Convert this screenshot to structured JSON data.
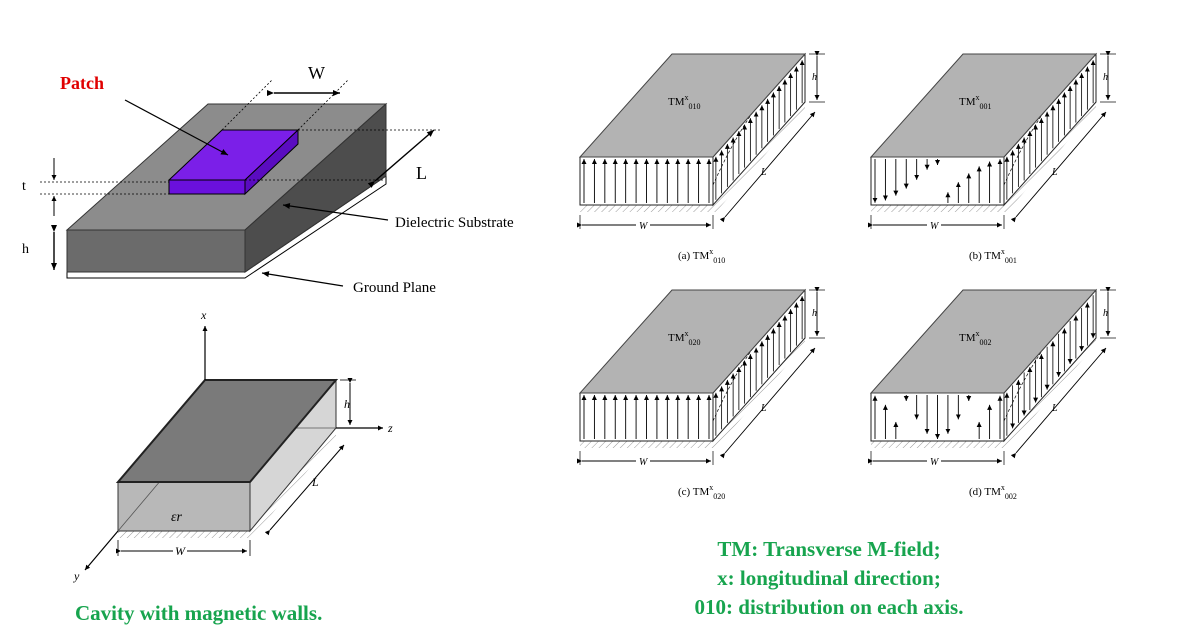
{
  "patch_antenna": {
    "patch_label": "Patch",
    "width_label": "W",
    "length_label": "L",
    "thickness_label": "t",
    "height_label": "h",
    "substrate_label": "Dielectric Substrate",
    "ground_label": "Ground Plane",
    "colors": {
      "patch": "#7b1fe8",
      "substrate_top": "#8c8c8c",
      "substrate_front": "#6b6b6b",
      "patch_label": "#e00000"
    }
  },
  "cavity": {
    "axis_x": "x",
    "axis_y": "y",
    "axis_z": "z",
    "height_label": "h",
    "length_label": "L",
    "width_label": "W",
    "permittivity_label": "εr",
    "caption": "Cavity with magnetic walls."
  },
  "modes": [
    {
      "inner_label": "TM",
      "inner_sup": "x",
      "inner_sub": "010",
      "caption_prefix": "(a) TM",
      "caption_sup": "x",
      "caption_sub": "010",
      "pattern": "uniform-up"
    },
    {
      "inner_label": "TM",
      "inner_sup": "x",
      "inner_sub": "001",
      "caption_prefix": "(b) TM",
      "caption_sup": "x",
      "caption_sub": "001",
      "pattern": "two-lobes-down-up"
    },
    {
      "inner_label": "TM",
      "inner_sup": "x",
      "inner_sub": "020",
      "caption_prefix": "(c) TM",
      "caption_sup": "x",
      "caption_sub": "020",
      "pattern": "uniform-up"
    },
    {
      "inner_label": "TM",
      "inner_sup": "x",
      "inner_sub": "002",
      "caption_prefix": "(d) TM",
      "caption_sup": "x",
      "caption_sub": "002",
      "pattern": "alternating"
    }
  ],
  "mode_dimension_labels": {
    "w": "W",
    "l": "L",
    "h": "h"
  },
  "legend": {
    "line1": "TM: Transverse M-field;",
    "line2": "x: longitudinal direction;",
    "line3": "010: distribution on each axis."
  }
}
